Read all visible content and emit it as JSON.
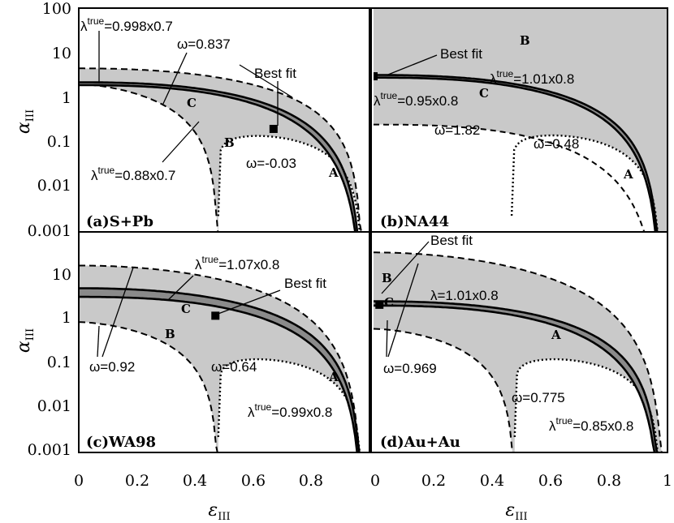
{
  "chart_data": [
    {
      "type": "area",
      "panel_label": "(a)S+Pb",
      "annotations": [
        {
          "text": "λ",
          "sup": "true",
          "suffix": "=0.998x0.7"
        },
        {
          "text": "ω=0.837"
        },
        {
          "text": "Best fit"
        },
        {
          "text": "ω=-0.03"
        },
        {
          "text": "λ",
          "sup": "true",
          "suffix": "=0.88x0.7"
        }
      ],
      "regions": [
        "A",
        "B",
        "C"
      ],
      "best_fit": {
        "x": 0.67,
        "y": 0.2
      }
    },
    {
      "type": "area",
      "panel_label": "(b)NA44",
      "annotations": [
        {
          "text": "Best fit"
        },
        {
          "text": "λ",
          "sup": "true",
          "suffix": "=1.01x0.8"
        },
        {
          "text": "λ",
          "sup": "true",
          "suffix": "=0.95x0.8"
        },
        {
          "text": "ω=1.82"
        },
        {
          "text": "ω=0.48"
        }
      ],
      "regions": [
        "A",
        "B",
        "C"
      ],
      "best_fit": {
        "x": 0.0,
        "y": 3.0
      }
    },
    {
      "type": "area",
      "panel_label": "(c)WA98",
      "annotations": [
        {
          "text": "λ",
          "sup": "true",
          "suffix": "=1.07x0.8"
        },
        {
          "text": "Best fit"
        },
        {
          "text": "ω=0.92"
        },
        {
          "text": "ω=0.64"
        },
        {
          "text": "λ",
          "sup": "true",
          "suffix": "=0.99x0.8"
        }
      ],
      "regions": [
        "A",
        "B",
        "C"
      ],
      "best_fit": {
        "x": 0.47,
        "y": 1.4
      }
    },
    {
      "type": "area",
      "panel_label": "(d)Au+Au",
      "annotations": [
        {
          "text": "Best fit"
        },
        {
          "text": "λ=1.01x0.8"
        },
        {
          "text": "ω=0.969"
        },
        {
          "text": "ω=0.775"
        },
        {
          "text": "λ",
          "sup": "true",
          "suffix": "=0.85x0.8"
        }
      ],
      "regions": [
        "A",
        "B",
        "C"
      ],
      "best_fit": {
        "x": 0.02,
        "y": 2.5
      }
    }
  ],
  "axes": {
    "xlabel": "ε",
    "xlabel_sub": "III",
    "ylabel": "α",
    "ylabel_sub": "III",
    "xlim": [
      0,
      1
    ],
    "ylim": [
      0.001,
      100
    ],
    "yscale": "log",
    "x_ticks": [
      "0",
      "0.2",
      "0.4",
      "0.6",
      "0.8",
      "1"
    ],
    "y_ticks": [
      "0.001",
      "0.01",
      "0.1",
      "1",
      "10",
      "100"
    ]
  },
  "colors": {
    "fill": "#c9c9c9",
    "curve": "#000000"
  }
}
